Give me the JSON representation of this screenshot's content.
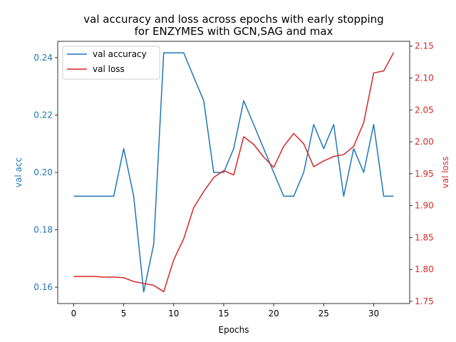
{
  "chart_data": {
    "type": "line",
    "title_line1": "val accuracy and loss across epochs with early stopping",
    "title_line2": "for ENZYMES with GCN,SAG and max",
    "xlabel": "Epochs",
    "ylabel_left": "val acc",
    "ylabel_right": "val loss",
    "xlim": [
      -1.6,
      33.6
    ],
    "ylim_left": [
      0.1543,
      0.2457
    ],
    "ylim_right": [
      1.7465,
      2.1575
    ],
    "x_ticks": [
      0,
      5,
      10,
      15,
      20,
      25,
      30
    ],
    "y_ticks_left": [
      0.16,
      0.18,
      0.2,
      0.22,
      0.24
    ],
    "y_ticks_right": [
      1.75,
      1.8,
      1.85,
      1.9,
      1.95,
      2.0,
      2.05,
      2.1,
      2.15
    ],
    "x": [
      0,
      1,
      2,
      3,
      4,
      5,
      6,
      7,
      8,
      9,
      10,
      11,
      12,
      13,
      14,
      15,
      16,
      17,
      18,
      19,
      20,
      21,
      22,
      23,
      24,
      25,
      26,
      27,
      28,
      29,
      30,
      31,
      32
    ],
    "series": [
      {
        "name": "val accuracy",
        "axis": "left",
        "color": "#1f77b4",
        "values": [
          0.1917,
          0.1917,
          0.1917,
          0.1917,
          0.1917,
          0.2083,
          0.1917,
          0.1583,
          0.175,
          0.2417,
          0.2417,
          0.2417,
          0.2333,
          0.225,
          0.2,
          0.2,
          0.2083,
          0.225,
          0.2167,
          0.2083,
          0.2,
          0.1917,
          0.1917,
          0.2,
          0.2167,
          0.2083,
          0.2167,
          0.1917,
          0.2083,
          0.2,
          0.2167,
          0.1917,
          0.1917
        ]
      },
      {
        "name": "val loss",
        "axis": "right",
        "color": "#d62728",
        "values": [
          1.789,
          1.789,
          1.789,
          1.788,
          1.788,
          1.787,
          1.781,
          1.778,
          1.775,
          1.765,
          1.815,
          1.848,
          1.897,
          1.922,
          1.944,
          1.955,
          1.948,
          2.008,
          1.996,
          1.976,
          1.96,
          1.993,
          2.013,
          1.997,
          1.961,
          1.97,
          1.977,
          1.98,
          1.993,
          2.03,
          2.108,
          2.111,
          2.14
        ]
      }
    ],
    "legend_position": "top-left",
    "grid": false
  }
}
